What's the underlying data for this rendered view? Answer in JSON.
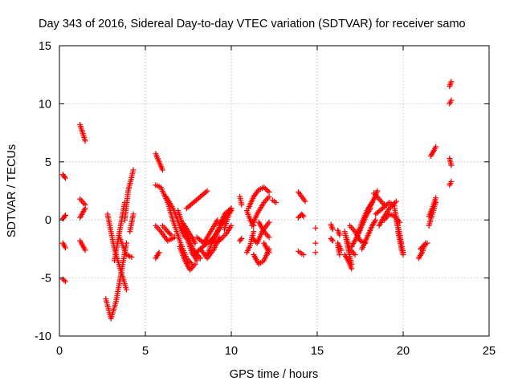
{
  "chart_data": {
    "type": "scatter",
    "title": "Day 343 of 2016, Sidereal Day-to-day VTEC variation (SDTVAR) for receiver samo",
    "xlabel": "GPS time / hours",
    "ylabel": "SDTVAR / TECUs",
    "xlim": [
      0,
      25
    ],
    "ylim": [
      -10,
      15
    ],
    "x_ticks": [
      0,
      5,
      10,
      15,
      20,
      25
    ],
    "y_ticks": [
      -10,
      -5,
      0,
      5,
      10,
      15
    ],
    "grid": true,
    "marker": "+",
    "marker_color": "#ff0000",
    "series": [
      {
        "name": "SDTVAR",
        "segments": [
          {
            "x": [
              0.2,
              0.35
            ],
            "y": [
              3.9,
              3.6
            ]
          },
          {
            "x": [
              0.2,
              0.35
            ],
            "y": [
              0.1,
              0.4
            ]
          },
          {
            "x": [
              0.2,
              0.35
            ],
            "y": [
              -2.0,
              -2.4
            ]
          },
          {
            "x": [
              0.2,
              0.35
            ],
            "y": [
              -5.1,
              -5.3
            ]
          },
          {
            "x": [
              1.2,
              1.5
            ],
            "y": [
              8.2,
              6.8
            ]
          },
          {
            "x": [
              1.2,
              1.5
            ],
            "y": [
              1.8,
              1.3
            ]
          },
          {
            "x": [
              1.2,
              1.5
            ],
            "y": [
              0.2,
              1.0
            ]
          },
          {
            "x": [
              1.2,
              1.5
            ],
            "y": [
              -1.8,
              -2.6
            ]
          },
          {
            "x": [
              2.7,
              3.0,
              3.3,
              3.6,
              3.9
            ],
            "y": [
              -6.8,
              -8.5,
              -7.0,
              -4.5,
              -2.0
            ]
          },
          {
            "x": [
              2.8,
              3.2,
              3.6,
              3.9
            ],
            "y": [
              0.5,
              -2.5,
              -4.5,
              -6.0
            ]
          },
          {
            "x": [
              3.2,
              3.5,
              3.8
            ],
            "y": [
              -3.5,
              -1.0,
              1.5
            ]
          },
          {
            "x": [
              3.5,
              3.9,
              4.2
            ],
            "y": [
              -1.5,
              -3.0,
              -3.2
            ]
          },
          {
            "x": [
              3.8,
              4.0,
              4.3
            ],
            "y": [
              0.0,
              2.5,
              4.3
            ]
          },
          {
            "x": [
              4.1,
              4.3
            ],
            "y": [
              -1.0,
              0.5
            ]
          },
          {
            "x": [
              5.6,
              5.8,
              6.0
            ],
            "y": [
              5.7,
              5.0,
              4.3
            ]
          },
          {
            "x": [
              5.6,
              5.9,
              6.3,
              6.6
            ],
            "y": [
              3.0,
              2.8,
              1.5,
              0.0
            ]
          },
          {
            "x": [
              5.6,
              5.9,
              6.3,
              6.7
            ],
            "y": [
              -0.5,
              -1.0,
              -1.8,
              -1.5
            ]
          },
          {
            "x": [
              5.6,
              5.8
            ],
            "y": [
              -3.3,
              -2.8
            ]
          },
          {
            "x": [
              6.0,
              6.3,
              6.5
            ],
            "y": [
              -0.5,
              -1.0,
              -1.3
            ]
          },
          {
            "x": [
              6.2,
              6.6,
              7.0,
              7.3
            ],
            "y": [
              2.0,
              1.0,
              -0.5,
              -1.5
            ]
          },
          {
            "x": [
              6.6,
              7.0,
              7.4,
              7.7
            ],
            "y": [
              0.0,
              -1.8,
              -3.3,
              -3.8
            ]
          },
          {
            "x": [
              6.9,
              7.3,
              7.7,
              8.0
            ],
            "y": [
              0.8,
              -1.0,
              -2.8,
              -3.5
            ]
          },
          {
            "x": [
              7.2,
              7.5,
              7.8,
              8.2
            ],
            "y": [
              -0.6,
              -1.6,
              -2.6,
              -3.3
            ]
          },
          {
            "x": [
              7.0,
              7.3,
              7.6,
              7.9
            ],
            "y": [
              -2.3,
              -3.5,
              -4.3,
              -3.8
            ]
          },
          {
            "x": [
              7.4,
              7.8,
              8.2,
              8.6
            ],
            "y": [
              1.0,
              1.5,
              2.0,
              2.5
            ]
          },
          {
            "x": [
              7.2,
              7.5,
              7.9
            ],
            "y": [
              -0.3,
              -1.0,
              -2.0
            ]
          },
          {
            "x": [
              7.8,
              8.2,
              8.6,
              9.0
            ],
            "y": [
              -3.0,
              -2.5,
              -2.0,
              -1.5
            ]
          },
          {
            "x": [
              8.0,
              8.4,
              8.8,
              9.2
            ],
            "y": [
              -1.5,
              -2.0,
              -1.0,
              0.0
            ]
          },
          {
            "x": [
              8.2,
              8.6,
              9.0,
              9.3
            ],
            "y": [
              -2.5,
              -3.3,
              -2.5,
              -1.5
            ]
          },
          {
            "x": [
              8.6,
              9.0,
              9.4,
              9.7
            ],
            "y": [
              -3.0,
              -1.5,
              -0.5,
              0.3
            ]
          },
          {
            "x": [
              8.8,
              9.2,
              9.6,
              10.0
            ],
            "y": [
              -2.0,
              -1.0,
              0.5,
              1.0
            ]
          },
          {
            "x": [
              9.0,
              9.3,
              9.7,
              10.0
            ],
            "y": [
              -2.0,
              -1.8,
              -1.2,
              -0.5
            ]
          },
          {
            "x": [
              9.3,
              9.6,
              10.0
            ],
            "y": [
              -0.5,
              0.3,
              0.8
            ]
          },
          {
            "x": [
              9.6,
              9.8,
              10.0
            ],
            "y": [
              -0.8,
              0.2,
              1.0
            ]
          },
          {
            "x": [
              10.5,
              10.6
            ],
            "y": [
              2.0,
              1.3
            ]
          },
          {
            "x": [
              10.5,
              10.6
            ],
            "y": [
              -1.8,
              -1.6
            ]
          },
          {
            "x": [
              10.9,
              11.1,
              11.3
            ],
            "y": [
              -2.8,
              -2.2,
              -1.0
            ]
          },
          {
            "x": [
              10.9,
              11.1,
              11.3
            ],
            "y": [
              0.8,
              0.0,
              -0.5
            ]
          },
          {
            "x": [
              11.0,
              11.3,
              11.6,
              11.9,
              12.2
            ],
            "y": [
              1.0,
              2.0,
              2.6,
              2.8,
              2.4
            ]
          },
          {
            "x": [
              11.2,
              11.5,
              11.9,
              12.2
            ],
            "y": [
              -0.5,
              0.5,
              1.5,
              2.0
            ]
          },
          {
            "x": [
              11.2,
              11.5,
              11.8,
              12.2
            ],
            "y": [
              -1.5,
              -2.0,
              -1.0,
              -0.2
            ]
          },
          {
            "x": [
              11.3,
              11.6,
              11.9,
              12.2
            ],
            "y": [
              -3.0,
              -3.8,
              -3.5,
              -2.5
            ]
          },
          {
            "x": [
              11.6,
              11.9,
              12.2
            ],
            "y": [
              -0.2,
              -1.0,
              -1.5
            ]
          },
          {
            "x": [
              11.9,
              12.2
            ],
            "y": [
              -2.0,
              -2.8
            ]
          },
          {
            "x": [
              12.4,
              12.6
            ],
            "y": [
              1.7,
              1.5
            ]
          },
          {
            "x": [
              13.9,
              14.1,
              14.3
            ],
            "y": [
              2.4,
              2.0,
              1.6
            ]
          },
          {
            "x": [
              13.9,
              14.1,
              14.2
            ],
            "y": [
              0.2,
              0.5,
              0.3
            ]
          },
          {
            "x": [
              13.9,
              14.1,
              14.2
            ],
            "y": [
              -2.7,
              -2.9,
              -3.0
            ]
          },
          {
            "x": [
              14.9
            ],
            "y": [
              -0.7
            ]
          },
          {
            "x": [
              14.9
            ],
            "y": [
              -2.0
            ]
          },
          {
            "x": [
              14.9
            ],
            "y": [
              -2.8
            ]
          },
          {
            "x": [
              15.8,
              15.9
            ],
            "y": [
              -0.4,
              -0.8
            ]
          },
          {
            "x": [
              15.8,
              15.9
            ],
            "y": [
              -1.6,
              -1.8
            ]
          },
          {
            "x": [
              16.2,
              16.3
            ],
            "y": [
              -0.9,
              -1.3
            ]
          },
          {
            "x": [
              16.2,
              16.3
            ],
            "y": [
              -2.2,
              -3.0
            ]
          },
          {
            "x": [
              16.2,
              16.4
            ],
            "y": [
              -2.0,
              -2.6
            ]
          },
          {
            "x": [
              16.6,
              16.8,
              17.0
            ],
            "y": [
              -1.0,
              -2.5,
              -3.8
            ]
          },
          {
            "x": [
              16.6,
              16.8,
              17.0
            ],
            "y": [
              -3.0,
              -3.5,
              -4.2
            ]
          },
          {
            "x": [
              16.7,
              16.9,
              17.2
            ],
            "y": [
              -1.5,
              -2.5,
              -3.0
            ]
          },
          {
            "x": [
              16.9,
              17.2,
              17.5,
              17.8
            ],
            "y": [
              -0.5,
              -1.0,
              -1.8,
              -2.0
            ]
          },
          {
            "x": [
              17.0,
              17.3,
              17.6,
              17.9,
              18.1
            ],
            "y": [
              -2.3,
              -1.5,
              -0.5,
              0.5,
              1.0
            ]
          },
          {
            "x": [
              17.3,
              17.6,
              17.9,
              18.2
            ],
            "y": [
              -1.5,
              -0.2,
              0.8,
              1.5
            ]
          },
          {
            "x": [
              17.6,
              17.9,
              18.2,
              18.4
            ],
            "y": [
              -2.5,
              -1.5,
              -0.5,
              0.0
            ]
          },
          {
            "x": [
              18.0,
              18.3,
              18.5
            ],
            "y": [
              1.0,
              1.8,
              2.5
            ]
          },
          {
            "x": [
              18.3,
              18.6,
              18.9
            ],
            "y": [
              2.3,
              1.8,
              1.3
            ]
          },
          {
            "x": [
              18.4,
              18.8,
              19.2,
              19.5
            ],
            "y": [
              0.5,
              1.0,
              1.5,
              1.2
            ]
          },
          {
            "x": [
              18.6,
              18.9,
              19.2,
              19.6
            ],
            "y": [
              -0.5,
              0.3,
              1.0,
              1.6
            ]
          },
          {
            "x": [
              18.9,
              19.2,
              19.5,
              19.8
            ],
            "y": [
              0.0,
              0.5,
              0.3,
              -0.2
            ]
          },
          {
            "x": [
              19.5,
              19.7,
              19.9
            ],
            "y": [
              1.0,
              -0.5,
              -2.0
            ]
          },
          {
            "x": [
              19.6,
              19.8,
              20.0
            ],
            "y": [
              0.0,
              -1.5,
              -2.8
            ]
          },
          {
            "x": [
              19.7,
              19.9,
              20.0
            ],
            "y": [
              -1.0,
              -2.5,
              -3.0
            ]
          },
          {
            "x": [
              20.9,
              21.1,
              21.3
            ],
            "y": [
              -3.3,
              -2.8,
              -2.0
            ]
          },
          {
            "x": [
              21.0,
              21.2,
              21.4
            ],
            "y": [
              -2.5,
              -2.2,
              -2.0
            ]
          },
          {
            "x": [
              21.5,
              21.7,
              21.9
            ],
            "y": [
              -0.5,
              0.5,
              1.5
            ]
          },
          {
            "x": [
              21.5,
              21.7,
              21.9
            ],
            "y": [
              0.3,
              1.0,
              1.9
            ]
          },
          {
            "x": [
              21.6,
              21.8,
              21.9
            ],
            "y": [
              5.5,
              6.0,
              6.3
            ]
          },
          {
            "x": [
              22.7,
              22.8
            ],
            "y": [
              11.5,
              11.9
            ]
          },
          {
            "x": [
              22.7,
              22.8
            ],
            "y": [
              10.0,
              10.3
            ]
          },
          {
            "x": [
              22.7,
              22.8
            ],
            "y": [
              5.3,
              4.7
            ]
          },
          {
            "x": [
              22.7,
              22.8
            ],
            "y": [
              3.0,
              3.3
            ]
          }
        ]
      }
    ]
  }
}
